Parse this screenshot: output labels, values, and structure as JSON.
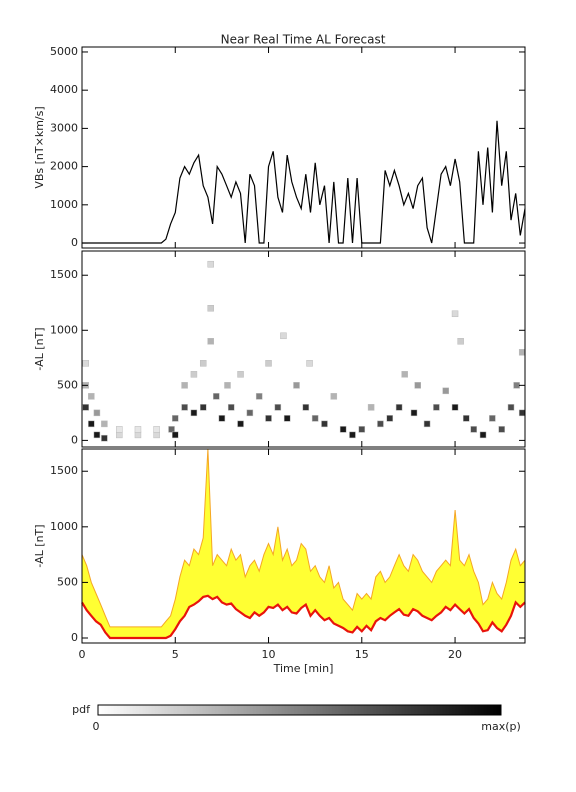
{
  "chart_data": [
    {
      "type": "line",
      "title": "Near Real Time AL Forecast",
      "y_label": "VBs [nT×km/s]",
      "color": "#000000",
      "xlim": [
        0,
        23.75
      ],
      "ylim": [
        -130,
        5130
      ],
      "yticks": [
        0,
        1000,
        2000,
        3000,
        4000,
        5000
      ],
      "x": [
        0,
        0.25,
        0.5,
        0.75,
        1,
        1.25,
        1.5,
        1.75,
        2,
        2.25,
        2.5,
        2.75,
        3,
        3.25,
        3.5,
        3.75,
        4,
        4.25,
        4.5,
        4.75,
        5,
        5.25,
        5.5,
        5.75,
        6,
        6.25,
        6.5,
        6.75,
        7,
        7.25,
        7.5,
        7.75,
        8,
        8.25,
        8.5,
        8.75,
        9,
        9.25,
        9.5,
        9.75,
        10,
        10.25,
        10.5,
        10.75,
        11,
        11.25,
        11.5,
        11.75,
        12,
        12.25,
        12.5,
        12.75,
        13,
        13.25,
        13.5,
        13.75,
        14,
        14.25,
        14.5,
        14.75,
        15,
        15.25,
        15.5,
        15.75,
        16,
        16.25,
        16.5,
        16.75,
        17,
        17.25,
        17.5,
        17.75,
        18,
        18.25,
        18.5,
        18.75,
        19,
        19.25,
        19.5,
        19.75,
        20,
        20.25,
        20.5,
        20.75,
        21,
        21.25,
        21.5,
        21.75,
        22,
        22.25,
        22.5,
        22.75,
        23,
        23.25,
        23.5,
        23.75
      ],
      "values": [
        0,
        0,
        0,
        0,
        0,
        0,
        0,
        0,
        0,
        0,
        0,
        0,
        0,
        0,
        0,
        0,
        0,
        0,
        100,
        500,
        800,
        1700,
        2000,
        1800,
        2100,
        2300,
        1500,
        1200,
        500,
        2000,
        1800,
        1500,
        1200,
        1600,
        1300,
        0,
        1800,
        1500,
        0,
        0,
        2000,
        2400,
        1200,
        800,
        2300,
        1600,
        1200,
        900,
        1800,
        800,
        2100,
        1000,
        1500,
        0,
        1600,
        0,
        0,
        1700,
        0,
        1700,
        0,
        0,
        0,
        0,
        0,
        1900,
        1500,
        1900,
        1500,
        1000,
        1300,
        900,
        1500,
        1700,
        400,
        0,
        900,
        1800,
        2000,
        1500,
        2200,
        1600,
        0,
        0,
        0,
        2400,
        1000,
        2500,
        800,
        3200,
        1500,
        2400,
        600,
        1300,
        200,
        900
      ]
    },
    {
      "type": "heatmap",
      "y_label": "-AL [nT]",
      "xlim": [
        0,
        23.75
      ],
      "ylim": [
        -60,
        1720
      ],
      "yticks": [
        0,
        500,
        1000,
        1500
      ],
      "x": [
        0.2,
        0.2,
        0.2,
        0.5,
        0.5,
        0.8,
        0.8,
        1.2,
        1.2,
        2,
        2,
        3,
        3,
        4,
        4,
        4.8,
        5,
        5,
        5.5,
        5.5,
        6,
        6,
        6.5,
        6.5,
        6.9,
        6.9,
        6.9,
        7.2,
        7.5,
        7.8,
        8,
        8.5,
        8.5,
        9,
        9.5,
        10,
        10,
        10.5,
        10.8,
        11,
        11.5,
        12,
        12.2,
        12.5,
        13,
        13.5,
        14,
        14.5,
        15,
        15.5,
        16,
        16.5,
        17,
        17.3,
        17.8,
        18,
        18.5,
        19,
        19.5,
        20,
        20,
        20.3,
        20.6,
        21,
        21.5,
        22,
        22.5,
        23,
        23.3,
        23.6,
        23.6
      ],
      "y": [
        300,
        500,
        700,
        150,
        400,
        50,
        250,
        20,
        150,
        50,
        100,
        50,
        100,
        50,
        100,
        100,
        200,
        50,
        300,
        500,
        250,
        600,
        300,
        700,
        1600,
        1200,
        900,
        400,
        200,
        500,
        300,
        150,
        600,
        250,
        400,
        200,
        700,
        300,
        950,
        200,
        500,
        300,
        700,
        200,
        150,
        400,
        100,
        50,
        100,
        300,
        150,
        200,
        300,
        600,
        250,
        500,
        150,
        300,
        450,
        300,
        1150,
        900,
        200,
        100,
        50,
        200,
        100,
        300,
        500,
        800,
        250
      ],
      "p": [
        0.8,
        0.3,
        0.15,
        0.9,
        0.3,
        0.9,
        0.4,
        0.8,
        0.3,
        0.15,
        0.1,
        0.15,
        0.1,
        0.15,
        0.1,
        0.6,
        0.6,
        0.9,
        0.7,
        0.3,
        0.9,
        0.2,
        0.8,
        0.2,
        0.15,
        0.2,
        0.3,
        0.6,
        0.9,
        0.3,
        0.7,
        0.9,
        0.2,
        0.6,
        0.5,
        0.8,
        0.2,
        0.7,
        0.15,
        0.9,
        0.4,
        0.8,
        0.15,
        0.6,
        0.8,
        0.3,
        0.9,
        0.9,
        0.7,
        0.3,
        0.7,
        0.8,
        0.8,
        0.3,
        0.9,
        0.4,
        0.8,
        0.7,
        0.4,
        0.9,
        0.15,
        0.2,
        0.8,
        0.7,
        0.9,
        0.6,
        0.7,
        0.7,
        0.5,
        0.3,
        0.8
      ]
    },
    {
      "type": "band",
      "y_label": "-AL [nT]",
      "x_label": "Time [min]",
      "xlim": [
        0,
        23.75
      ],
      "ylim": [
        -45,
        1700
      ],
      "yticks": [
        0,
        500,
        1000,
        1500
      ],
      "xticks": [
        0,
        5,
        10,
        15,
        20
      ],
      "x": [
        0,
        0.25,
        0.5,
        0.75,
        1,
        1.25,
        1.5,
        1.75,
        2,
        2.25,
        2.5,
        2.75,
        3,
        3.25,
        3.5,
        3.75,
        4,
        4.25,
        4.5,
        4.75,
        5,
        5.25,
        5.5,
        5.75,
        6,
        6.25,
        6.5,
        6.75,
        7,
        7.25,
        7.5,
        7.75,
        8,
        8.25,
        8.5,
        8.75,
        9,
        9.25,
        9.5,
        9.75,
        10,
        10.25,
        10.5,
        10.75,
        11,
        11.25,
        11.5,
        11.75,
        12,
        12.25,
        12.5,
        12.75,
        13,
        13.25,
        13.5,
        13.75,
        14,
        14.25,
        14.5,
        14.75,
        15,
        15.25,
        15.5,
        15.75,
        16,
        16.25,
        16.5,
        16.75,
        17,
        17.25,
        17.5,
        17.75,
        18,
        18.25,
        18.5,
        18.75,
        19,
        19.25,
        19.5,
        19.75,
        20,
        20.25,
        20.5,
        20.75,
        21,
        21.25,
        21.5,
        21.75,
        22,
        22.25,
        22.5,
        22.75,
        23,
        23.25,
        23.5,
        23.75
      ],
      "series": [
        {
          "color": "#e8140c",
          "values": [
            320,
            250,
            200,
            150,
            120,
            50,
            0,
            0,
            0,
            0,
            0,
            0,
            0,
            0,
            0,
            0,
            0,
            0,
            0,
            20,
            80,
            150,
            200,
            280,
            300,
            330,
            370,
            380,
            350,
            370,
            320,
            300,
            310,
            260,
            230,
            200,
            180,
            230,
            200,
            230,
            280,
            270,
            300,
            250,
            280,
            230,
            220,
            270,
            300,
            200,
            250,
            200,
            160,
            180,
            130,
            110,
            90,
            60,
            50,
            100,
            60,
            110,
            70,
            150,
            180,
            160,
            200,
            230,
            260,
            210,
            200,
            260,
            240,
            200,
            180,
            160,
            200,
            230,
            280,
            250,
            300,
            260,
            220,
            260,
            180,
            130,
            60,
            70,
            140,
            90,
            60,
            120,
            200,
            320,
            280,
            320
          ]
        },
        {
          "color": "#f5a623",
          "fill": "#ffff33",
          "values": [
            750,
            650,
            500,
            400,
            300,
            200,
            100,
            100,
            100,
            100,
            100,
            100,
            100,
            100,
            100,
            100,
            100,
            100,
            150,
            200,
            350,
            550,
            700,
            650,
            800,
            750,
            900,
            1700,
            650,
            750,
            700,
            650,
            800,
            700,
            750,
            550,
            650,
            700,
            600,
            750,
            850,
            750,
            1000,
            700,
            800,
            650,
            700,
            850,
            800,
            600,
            650,
            550,
            500,
            650,
            450,
            500,
            350,
            300,
            250,
            400,
            350,
            400,
            350,
            550,
            600,
            500,
            550,
            650,
            750,
            650,
            600,
            750,
            700,
            600,
            550,
            500,
            600,
            650,
            700,
            650,
            1150,
            700,
            650,
            750,
            600,
            500,
            300,
            350,
            500,
            400,
            350,
            500,
            700,
            800,
            650,
            700
          ]
        }
      ]
    }
  ],
  "colorbar": {
    "label": "pdf",
    "min_label": "0",
    "max_label": "max(p)"
  }
}
